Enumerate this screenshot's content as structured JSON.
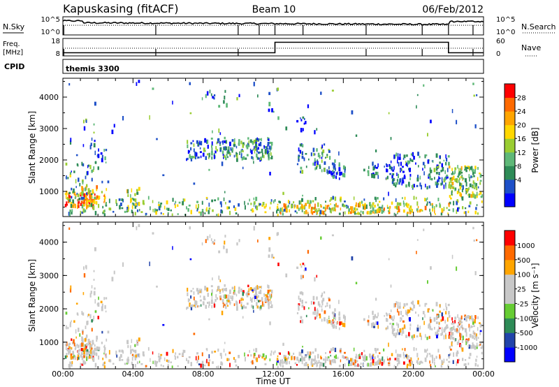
{
  "header": {
    "station": "Kapuskasing (fitACF)",
    "beam": "Beam 10",
    "date": "06/Feb/2012"
  },
  "top_panels": {
    "nsky_label": "N.Sky",
    "nsky_ticks_left": [
      "10^5",
      "10^0"
    ],
    "nsearch_label": "N.Search",
    "nsearch_ticks_right": [
      "10^5",
      "10^0"
    ],
    "freq_label_1": "Freq.",
    "freq_label_2": "[MHz]",
    "freq_ticks": [
      "18",
      "8"
    ],
    "nave_label": "Nave",
    "nave_ticks": [
      "60",
      "0"
    ],
    "cpid_label": "CPID",
    "cpid_value": "themis 3300"
  },
  "chart_data": [
    {
      "type": "heatmap",
      "title": "",
      "ylabel": "Slant Range [km]",
      "ylim": [
        200,
        4600
      ],
      "yticks": [
        "4000",
        "3000",
        "2000",
        "1000"
      ],
      "colorbar": {
        "label": "Power [dB]",
        "ticks": [
          "28",
          "24",
          "20",
          "16",
          "12",
          "8",
          "4"
        ],
        "colors": [
          "#0000ff",
          "#1e50c8",
          "#2e8b57",
          "#5fb878",
          "#9acd32",
          "#ffd700",
          "#ffa500",
          "#ff6a00",
          "#ff0000"
        ]
      }
    },
    {
      "type": "heatmap",
      "title": "",
      "ylabel": "Slant Range [km]",
      "ylim": [
        200,
        4600
      ],
      "yticks": [
        "4000",
        "3000",
        "2000",
        "1000"
      ],
      "xlabel": "Time UT",
      "xticks": [
        "00:00",
        "04:00",
        "08:00",
        "12:00",
        "16:00",
        "20:00",
        "00:00"
      ],
      "colorbar": {
        "label": "Velocity [m s⁻¹]",
        "ticks": [
          "1000",
          "500",
          "100",
          "25",
          "-25",
          "-100",
          "-500",
          "-1000"
        ],
        "colors": [
          "#0000ff",
          "#2244aa",
          "#2e8b57",
          "#66cc33",
          "#c8c8c8",
          "#c8c8c8",
          "#ffa500",
          "#ff6a00",
          "#ff0000"
        ]
      }
    }
  ]
}
